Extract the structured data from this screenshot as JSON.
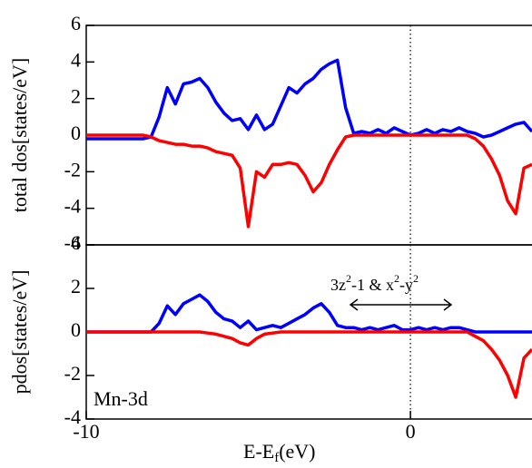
{
  "chart_data": [
    {
      "type": "line",
      "y_label": "total dos[states/eV]",
      "xlim": [
        -10,
        3.75
      ],
      "ylim": [
        -6,
        6
      ],
      "yticks": [
        -6,
        -4,
        -2,
        0,
        2,
        4,
        6
      ],
      "x": [
        -10,
        -9.75,
        -9.5,
        -9.25,
        -9,
        -8.75,
        -8.5,
        -8.25,
        -8,
        -7.75,
        -7.5,
        -7.25,
        -7,
        -6.75,
        -6.5,
        -6.25,
        -6,
        -5.75,
        -5.5,
        -5.25,
        -5,
        -4.75,
        -4.5,
        -4.25,
        -4,
        -3.75,
        -3.5,
        -3.25,
        -3,
        -2.75,
        -2.5,
        -2.25,
        -2,
        -1.75,
        -1.5,
        -1.25,
        -1,
        -0.75,
        -0.5,
        -0.25,
        0,
        0.25,
        0.5,
        0.75,
        1,
        1.25,
        1.5,
        1.75,
        2,
        2.25,
        2.5,
        2.75,
        3,
        3.25,
        3.5,
        3.75
      ],
      "series": [
        {
          "color": "#0000ff",
          "values": [
            -0.2,
            -0.2,
            -0.2,
            -0.2,
            -0.2,
            -0.2,
            -0.2,
            -0.2,
            -0.1,
            1.0,
            2.6,
            1.7,
            2.8,
            2.9,
            3.1,
            2.6,
            1.8,
            1.2,
            0.8,
            0.9,
            0.3,
            1.1,
            0.3,
            0.6,
            1.6,
            2.6,
            2.3,
            2.8,
            3.1,
            3.6,
            3.9,
            4.1,
            1.5,
            0.1,
            0.2,
            0.1,
            0.3,
            0.1,
            0.4,
            0.2,
            0.0,
            0.1,
            0.3,
            0.1,
            0.3,
            0.2,
            0.4,
            0.2,
            0.1,
            -0.1,
            0.0,
            0.2,
            0.4,
            0.6,
            0.7,
            0.2
          ]
        },
        {
          "color": "#ff0000",
          "values": [
            0,
            0,
            0,
            0,
            0,
            0,
            0,
            0,
            -0.1,
            -0.3,
            -0.4,
            -0.5,
            -0.5,
            -0.6,
            -0.6,
            -0.7,
            -0.9,
            -1.0,
            -1.1,
            -1.8,
            -5.0,
            -2.0,
            -2.3,
            -1.6,
            -1.6,
            -1.5,
            -1.6,
            -2.2,
            -3.1,
            -2.6,
            -1.6,
            -0.8,
            -0.1,
            0,
            0,
            0,
            0,
            0,
            0,
            0,
            0,
            0,
            0,
            0,
            0,
            0,
            0,
            0,
            -0.2,
            -0.6,
            -1.3,
            -2.2,
            -3.6,
            -4.3,
            -1.8,
            -1.6
          ]
        }
      ]
    },
    {
      "type": "line",
      "y_label": "pdos[states/eV]",
      "x_label": [
        "E-E",
        "f",
        "(eV)"
      ],
      "annotation": [
        "3z",
        "2",
        "-1 & x",
        "2",
        "-y",
        "2"
      ],
      "label": "Mn-3d",
      "xlim": [
        -10,
        3.75
      ],
      "ylim": [
        -4,
        4
      ],
      "yticks": [
        -4,
        -2,
        0,
        2,
        4
      ],
      "xticks": [
        -10,
        0
      ],
      "x": [
        -10,
        -9.75,
        -9.5,
        -9.25,
        -9,
        -8.75,
        -8.5,
        -8.25,
        -8,
        -7.75,
        -7.5,
        -7.25,
        -7,
        -6.75,
        -6.5,
        -6.25,
        -6,
        -5.75,
        -5.5,
        -5.25,
        -5,
        -4.75,
        -4.5,
        -4.25,
        -4,
        -3.75,
        -3.5,
        -3.25,
        -3,
        -2.75,
        -2.5,
        -2.25,
        -2,
        -1.75,
        -1.5,
        -1.25,
        -1,
        -0.75,
        -0.5,
        -0.25,
        0,
        0.25,
        0.5,
        0.75,
        1,
        1.25,
        1.5,
        1.75,
        2,
        2.25,
        2.5,
        2.75,
        3,
        3.25,
        3.5,
        3.75
      ],
      "series": [
        {
          "color": "#0000ff",
          "values": [
            0,
            0,
            0,
            0,
            0,
            0,
            0,
            0,
            0,
            0.4,
            1.2,
            0.8,
            1.3,
            1.5,
            1.7,
            1.4,
            0.9,
            0.6,
            0.5,
            0.2,
            0.5,
            0.1,
            0.2,
            0.3,
            0.2,
            0.4,
            0.6,
            0.8,
            1.1,
            1.3,
            0.9,
            0.3,
            0.2,
            0.2,
            0.1,
            0.2,
            0.1,
            0.2,
            0.3,
            0.1,
            0.1,
            0.2,
            0.1,
            0.2,
            0.1,
            0.2,
            0.2,
            0.1,
            0,
            0,
            0,
            0,
            0,
            0,
            0,
            0
          ]
        },
        {
          "color": "#ff0000",
          "values": [
            0,
            0,
            0,
            0,
            0,
            0,
            0,
            0,
            0,
            0,
            0,
            0,
            0,
            0,
            0,
            -0.05,
            -0.1,
            -0.2,
            -0.3,
            -0.5,
            -0.6,
            -0.3,
            -0.1,
            -0.05,
            0,
            0,
            0,
            0,
            0,
            0,
            0,
            0,
            0,
            0,
            0,
            0,
            0,
            0,
            0,
            0,
            0,
            0,
            0,
            0,
            0,
            0,
            0,
            0,
            -0.2,
            -0.4,
            -0.8,
            -1.3,
            -2.0,
            -3.0,
            -1.2,
            -0.8
          ]
        }
      ]
    }
  ]
}
